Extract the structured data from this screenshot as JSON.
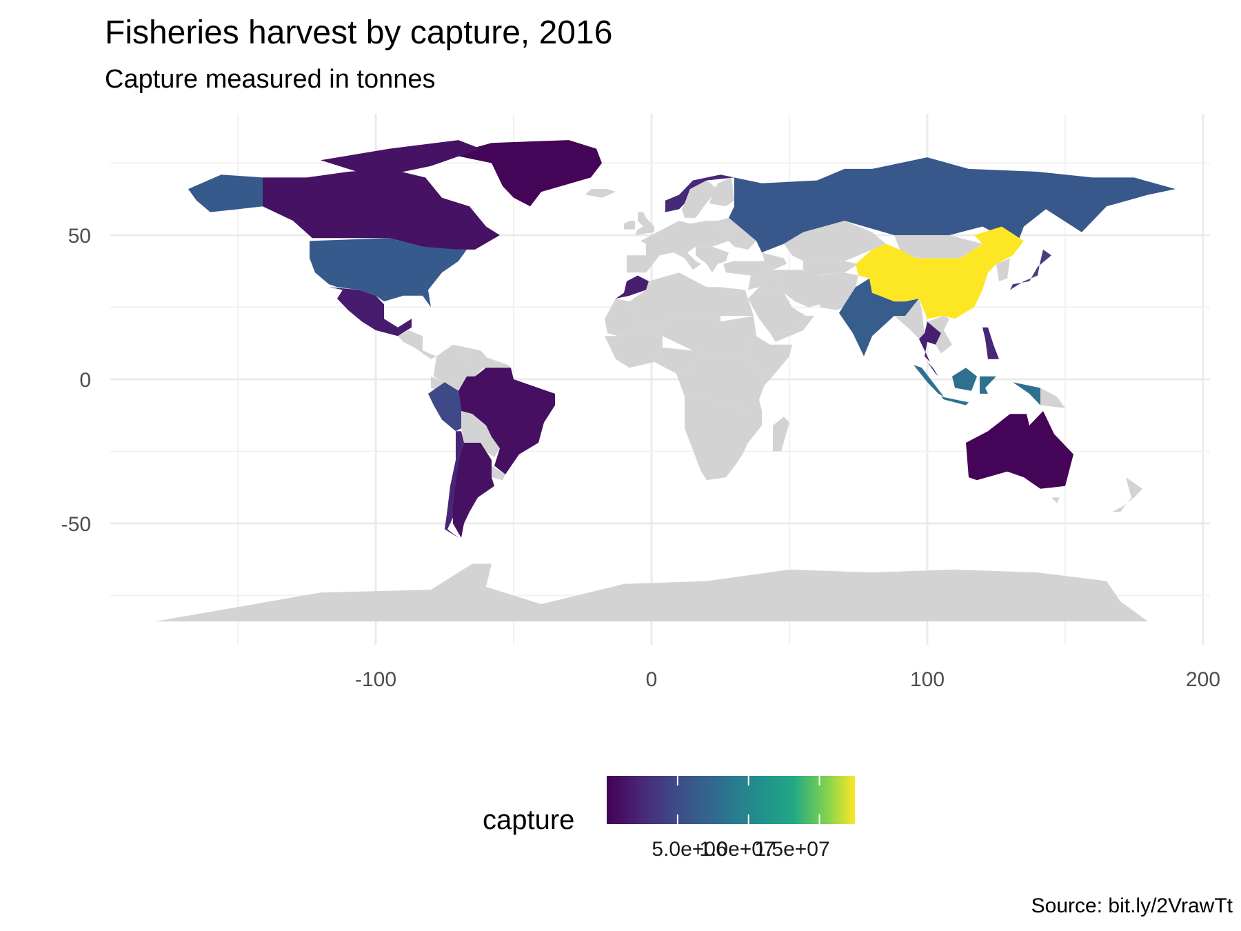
{
  "title": "Fisheries harvest by capture, 2016",
  "subtitle": "Capture measured in tonnes",
  "caption": "Source: bit.ly/2VrawTt",
  "legend": {
    "title": "capture",
    "palette": "viridis",
    "tick_labels": [
      "5.0e+06",
      "1.0e+07",
      "1.5e+07"
    ]
  },
  "colors": {
    "no_data": "#d3d3d3",
    "viridis_low": "#440154",
    "viridis_high": "#fde725"
  },
  "chart_data": {
    "type": "heatmap",
    "map_type": "choropleth",
    "title": "Fisheries harvest by capture, 2016",
    "subtitle": "Capture measured in tonnes",
    "legend_title": "capture",
    "legend_position": "bottom",
    "grid": true,
    "x": {
      "ticks": [
        -100,
        0,
        100,
        200
      ],
      "lim": [
        -180,
        200
      ]
    },
    "y": {
      "ticks": [
        50,
        0,
        -50
      ],
      "lim": [
        -85,
        85
      ]
    },
    "color_scale": {
      "min": 0,
      "max": 17500000,
      "ticks": [
        5000000,
        10000000,
        15000000
      ]
    },
    "regions": [
      {
        "name": "China",
        "capture": 17800000
      },
      {
        "name": "Indonesia",
        "capture": 6500000
      },
      {
        "name": "India",
        "capture": 5100000
      },
      {
        "name": "United States",
        "capture": 4900000
      },
      {
        "name": "Russia",
        "capture": 4800000
      },
      {
        "name": "Peru",
        "capture": 3800000
      },
      {
        "name": "Vietnam",
        "capture": 2700000
      },
      {
        "name": "Japan",
        "capture": 3200000
      },
      {
        "name": "Norway",
        "capture": 2000000
      },
      {
        "name": "Chile",
        "capture": 1800000
      },
      {
        "name": "Philippines",
        "capture": 1900000
      },
      {
        "name": "Thailand",
        "capture": 1500000
      },
      {
        "name": "Mexico",
        "capture": 1300000
      },
      {
        "name": "Malaysia",
        "capture": 1600000
      },
      {
        "name": "Morocco",
        "capture": 1400000
      },
      {
        "name": "Argentina",
        "capture": 800000
      },
      {
        "name": "Canada",
        "capture": 850000
      },
      {
        "name": "Brazil",
        "capture": 700000
      },
      {
        "name": "Australia",
        "capture": 170000
      },
      {
        "name": "Greenland",
        "capture": 150000
      }
    ]
  }
}
